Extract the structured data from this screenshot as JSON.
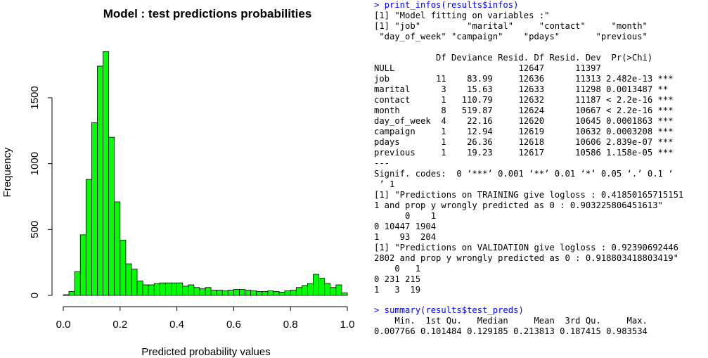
{
  "chart_data": {
    "type": "bar",
    "title": "Model : test predictions probabilities",
    "xlabel": "Predicted probability values",
    "ylabel": "Frequency",
    "bin_width": 0.02,
    "bin_starts": [
      0.0,
      0.02,
      0.04,
      0.06,
      0.08,
      0.1,
      0.12,
      0.14,
      0.16,
      0.18,
      0.2,
      0.22,
      0.24,
      0.26,
      0.28,
      0.3,
      0.32,
      0.34,
      0.36,
      0.38,
      0.4,
      0.42,
      0.44,
      0.46,
      0.48,
      0.5,
      0.52,
      0.54,
      0.56,
      0.58,
      0.6,
      0.62,
      0.64,
      0.66,
      0.68,
      0.7,
      0.72,
      0.74,
      0.76,
      0.78,
      0.8,
      0.82,
      0.84,
      0.86,
      0.88,
      0.9,
      0.92,
      0.94,
      0.96,
      0.98
    ],
    "values": [
      5,
      30,
      180,
      460,
      880,
      1310,
      1740,
      1850,
      1200,
      710,
      420,
      240,
      200,
      110,
      80,
      80,
      90,
      95,
      95,
      95,
      95,
      70,
      80,
      60,
      50,
      60,
      40,
      40,
      35,
      40,
      45,
      45,
      40,
      35,
      30,
      30,
      35,
      30,
      25,
      35,
      40,
      60,
      75,
      90,
      160,
      130,
      90,
      60,
      80,
      20
    ],
    "xlim": [
      0,
      1
    ],
    "ylim": [
      0,
      1900
    ],
    "xticks": [
      "0.0",
      "0.2",
      "0.4",
      "0.6",
      "0.8",
      "1.0"
    ],
    "xtick_values": [
      0,
      0.2,
      0.4,
      0.6,
      0.8,
      1.0
    ],
    "yticks": [
      "0",
      "500",
      "1000",
      "1500"
    ],
    "ytick_values": [
      0,
      500,
      1000,
      1500
    ],
    "grid": false,
    "bar_color": "#00ff00",
    "bar_edge_color": "#000000"
  },
  "console": {
    "text_color": "#000000",
    "command_color": "#0000ff",
    "lines": [
      {
        "text": "> print_infos(results$infos)",
        "cmd": true
      },
      {
        "text": "[1] \"Model fitting on variables :\""
      },
      {
        "text": "[1] \"job\"         \"marital\"     \"contact\"     \"month\""
      },
      {
        "text": " \"day_of_week\" \"campaign\"    \"pdays\"       \"previous\""
      },
      {
        "text": ""
      },
      {
        "text": "            Df Deviance Resid. Df Resid. Dev  Pr(>Chi)"
      },
      {
        "text": "NULL                        12647      11397"
      },
      {
        "text": "job         11    83.99     12636      11313 2.482e-13 ***"
      },
      {
        "text": "marital      3    15.63     12633      11298 0.0013487 **"
      },
      {
        "text": "contact      1   110.79     12632      11187 < 2.2e-16 ***"
      },
      {
        "text": "month        8   519.87     12624      10667 < 2.2e-16 ***"
      },
      {
        "text": "day_of_week  4    22.16     12620      10645 0.0001863 ***"
      },
      {
        "text": "campaign     1    12.94     12619      10632 0.0003208 ***"
      },
      {
        "text": "pdays        1    26.36     12618      10606 2.839e-07 ***"
      },
      {
        "text": "previous     1    19.23     12617      10586 1.158e-05 ***"
      },
      {
        "text": "---"
      },
      {
        "text": "Signif. codes:  0 ‘***’ 0.001 ‘**’ 0.01 ‘*’ 0.05 ‘.’ 0.1 ‘"
      },
      {
        "text": " ’ 1"
      },
      {
        "text": "[1] \"Predictions on TRAINING give logloss : 0.41850165715151"
      },
      {
        "text": "1 and prop y wrongly predicted as 0 : 0.903225806451613\""
      },
      {
        "text": "      0    1"
      },
      {
        "text": "0 10447 1904"
      },
      {
        "text": "1    93  204"
      },
      {
        "text": "[1] \"Predictions on VALIDATION give logloss : 0.92390692446"
      },
      {
        "text": "2802 and prop y wrongly predicted as 0 : 0.918803418803419\""
      },
      {
        "text": "    0   1"
      },
      {
        "text": "0 231 215"
      },
      {
        "text": "1   3  19"
      },
      {
        "text": "",
        "gap": true
      },
      {
        "text": "> summary(results$test_preds)",
        "cmd": true
      },
      {
        "text": "    Min.  1st Qu.   Median     Mean  3rd Qu.     Max."
      },
      {
        "text": "0.007766 0.101484 0.129185 0.213813 0.187415 0.983534"
      }
    ]
  }
}
